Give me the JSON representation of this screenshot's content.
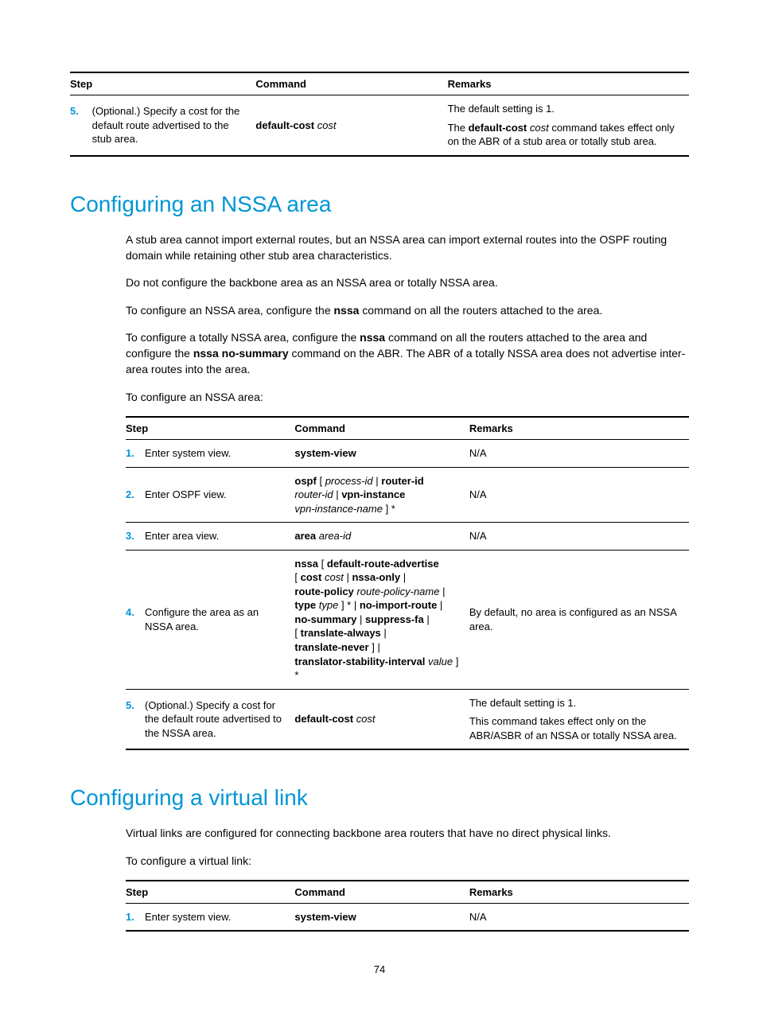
{
  "tableHeaders": {
    "step": "Step",
    "command": "Command",
    "remarks": "Remarks"
  },
  "table1": {
    "row5": {
      "num": "5.",
      "step": "(Optional.) Specify a cost for the default route advertised to the stub area.",
      "cmd_bold": "default-cost",
      "cmd_ital": "cost",
      "rem_line1": "The default setting is 1.",
      "rem_line2a": "The ",
      "rem_line2b": "default-cost",
      "rem_line2c": " ",
      "rem_line2d": "cost",
      "rem_line2e": " command takes effect only on the ABR of a stub area or totally stub area."
    }
  },
  "section_nssa": {
    "title": "Configuring an NSSA area",
    "p1": "A stub area cannot import external routes, but an NSSA area can import external routes into the OSPF routing domain while retaining other stub area characteristics.",
    "p2": "Do not configure the backbone area as an NSSA area or totally NSSA area.",
    "p3a": "To configure an NSSA area, configure the ",
    "p3b": "nssa",
    "p3c": " command on all the routers attached to the area.",
    "p4a": "To configure a totally NSSA area, configure the ",
    "p4b": "nssa",
    "p4c": " command on all the routers attached to the area and configure the ",
    "p4d": "nssa no-summary",
    "p4e": " command on the ABR. The ABR of a totally NSSA area does not advertise inter-area routes into the area.",
    "p5": "To configure an NSSA area:"
  },
  "table2": {
    "row1": {
      "num": "1.",
      "step": "Enter system view.",
      "cmd": "system-view",
      "rem": "N/A"
    },
    "row2": {
      "num": "2.",
      "step": "Enter OSPF view.",
      "c1": "ospf",
      "c2": " [ ",
      "c3": "process-id",
      "c4": " | ",
      "c5": "router-id",
      "c6": "router-id",
      "c7": " | ",
      "c8": "vpn-instance",
      "c9": "vpn-instance-name",
      "c10": " ] *",
      "rem": "N/A"
    },
    "row3": {
      "num": "3.",
      "step": "Enter area view.",
      "ca": "area",
      "cb": " ",
      "cc": "area-id",
      "rem": "N/A"
    },
    "row4": {
      "num": "4.",
      "step": "Configure the area as an NSSA area.",
      "l1": "nssa",
      "l1b": " [ ",
      "l1c": "default-route-advertise",
      "l2a": "[ ",
      "l2b": "cost",
      "l2c": " ",
      "l2d": "cost",
      "l2e": " | ",
      "l2f": "nssa-only",
      "l2g": " |",
      "l3a": "route-policy",
      "l3b": " ",
      "l3c": "route-policy-name",
      "l3d": " |",
      "l4a": "type",
      "l4b": " ",
      "l4c": "type",
      "l4d": " ] * | ",
      "l4e": "no-import-route",
      "l4f": " |",
      "l5a": "no-summary",
      "l5b": " | ",
      "l5c": "suppress-fa",
      "l5d": " |",
      "l6a": "[ ",
      "l6b": "translate-always",
      "l6c": " |",
      "l7a": "translate-never",
      "l7b": " ] |",
      "l8a": "translator-stability-interval",
      "l8b": " ",
      "l8c": "value",
      "l8d": " ] *",
      "rem": "By default, no area is configured as an NSSA area."
    },
    "row5": {
      "num": "5.",
      "step": "(Optional.) Specify a cost for the default route advertised to the NSSA area.",
      "cmd_bold": "default-cost",
      "cmd_ital": "cost",
      "rem1": "The default setting is 1.",
      "rem2": "This command takes effect only on the ABR/ASBR of an NSSA or totally NSSA area."
    }
  },
  "section_vlink": {
    "title": "Configuring a virtual link",
    "p1": "Virtual links are configured for connecting backbone area routers that have no direct physical links.",
    "p2": "To configure a virtual link:"
  },
  "table3": {
    "row1": {
      "num": "1.",
      "step": "Enter system view.",
      "cmd": "system-view",
      "rem": "N/A"
    }
  },
  "pagenum": "74"
}
